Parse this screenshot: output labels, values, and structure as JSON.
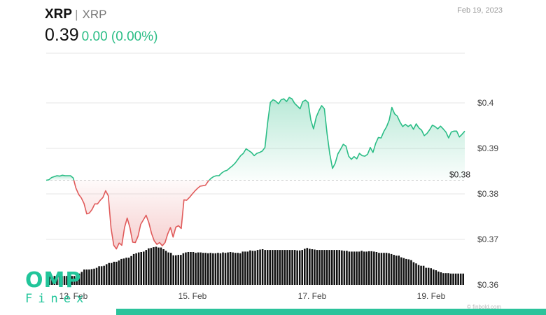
{
  "header": {
    "symbol": "XRP",
    "separator": "|",
    "name": "XRP",
    "price": "0.39",
    "change": "0.00 (0.00%)",
    "date": "Feb 19, 2023"
  },
  "logo": {
    "line1": "OMP",
    "line2": "Finex"
  },
  "credit": "© finbold.com",
  "colors": {
    "up": "#2bbd86",
    "down": "#e05a5a",
    "volume": "#111111",
    "brand": "#21c59a"
  },
  "chart_data": {
    "type": "line",
    "x_ticks": [
      "13. Feb",
      "15. Feb",
      "17. Feb",
      "19. Feb"
    ],
    "y_ticks": [
      "$0.4",
      "$0.39",
      "$0.38",
      "$0.37",
      "$0.36"
    ],
    "ylim": [
      0.36,
      0.4
    ],
    "baseline": {
      "value": 0.383,
      "label": "$0.38"
    },
    "price": [
      0.383,
      0.3831,
      0.3836,
      0.3838,
      0.384,
      0.3839,
      0.3841,
      0.384,
      0.384,
      0.384,
      0.3835,
      0.3813,
      0.3799,
      0.3791,
      0.3779,
      0.3756,
      0.3758,
      0.3766,
      0.3778,
      0.3778,
      0.3786,
      0.3792,
      0.3807,
      0.3796,
      0.3725,
      0.3687,
      0.3679,
      0.3692,
      0.3687,
      0.3726,
      0.3747,
      0.3726,
      0.3694,
      0.3693,
      0.3707,
      0.3733,
      0.3743,
      0.3753,
      0.3737,
      0.3713,
      0.3697,
      0.3689,
      0.3693,
      0.3686,
      0.3693,
      0.3712,
      0.3726,
      0.3705,
      0.3727,
      0.373,
      0.3724,
      0.3787,
      0.3786,
      0.3792,
      0.3799,
      0.3806,
      0.3812,
      0.3817,
      0.3818,
      0.3819,
      0.3828,
      0.3834,
      0.3838,
      0.384,
      0.384,
      0.3846,
      0.385,
      0.3852,
      0.3857,
      0.3862,
      0.3868,
      0.3876,
      0.3884,
      0.3889,
      0.3899,
      0.3895,
      0.3891,
      0.3884,
      0.3889,
      0.3891,
      0.3894,
      0.3902,
      0.3957,
      0.4001,
      0.4007,
      0.4004,
      0.3998,
      0.4007,
      0.4009,
      0.4003,
      0.4012,
      0.4009,
      0.3999,
      0.3993,
      0.3987,
      0.4003,
      0.4006,
      0.4001,
      0.3962,
      0.3943,
      0.3969,
      0.3983,
      0.3994,
      0.3987,
      0.3933,
      0.3888,
      0.3856,
      0.3867,
      0.3888,
      0.3898,
      0.3909,
      0.3905,
      0.3883,
      0.3876,
      0.3882,
      0.3877,
      0.3889,
      0.3884,
      0.3883,
      0.3887,
      0.3902,
      0.3891,
      0.3911,
      0.3924,
      0.3923,
      0.3937,
      0.3947,
      0.3962,
      0.399,
      0.3976,
      0.3971,
      0.3958,
      0.3948,
      0.3953,
      0.3948,
      0.3952,
      0.3942,
      0.3954,
      0.3945,
      0.394,
      0.3928,
      0.3933,
      0.3941,
      0.3951,
      0.3948,
      0.3943,
      0.3949,
      0.3943,
      0.3936,
      0.3923,
      0.3936,
      0.3938,
      0.3938,
      0.3925,
      0.3931,
      0.3938
    ],
    "volume": [
      0.22,
      0.21,
      0.21,
      0.22,
      0.22,
      0.22,
      0.22,
      0.22,
      0.22,
      0.22,
      0.22,
      0.22,
      0.25,
      0.28,
      0.32,
      0.38,
      0.38,
      0.38,
      0.39,
      0.4,
      0.42,
      0.46,
      0.46,
      0.47,
      0.51,
      0.54,
      0.54,
      0.57,
      0.57,
      0.6,
      0.64,
      0.65,
      0.67,
      0.67,
      0.71,
      0.76,
      0.78,
      0.8,
      0.81,
      0.82,
      0.86,
      0.9,
      0.91,
      0.93,
      0.94,
      0.92,
      0.92,
      0.88,
      0.84,
      0.8,
      0.79,
      0.73,
      0.73,
      0.74,
      0.74,
      0.78,
      0.8,
      0.81,
      0.81,
      0.81,
      0.79,
      0.8,
      0.8,
      0.79,
      0.79,
      0.78,
      0.79,
      0.78,
      0.78,
      0.79,
      0.78,
      0.8,
      0.79,
      0.8,
      0.81,
      0.8,
      0.79,
      0.79,
      0.78,
      0.82,
      0.82,
      0.82,
      0.85,
      0.84,
      0.84,
      0.86,
      0.87,
      0.88,
      0.86,
      0.86,
      0.86,
      0.86,
      0.86,
      0.86,
      0.86,
      0.86,
      0.86,
      0.86,
      0.86,
      0.86,
      0.86,
      0.85,
      0.85,
      0.86,
      0.89,
      0.91,
      0.89,
      0.88,
      0.87,
      0.86,
      0.86,
      0.86,
      0.86,
      0.86,
      0.86,
      0.86,
      0.86,
      0.86,
      0.86,
      0.85,
      0.84,
      0.84,
      0.82,
      0.82,
      0.82,
      0.82,
      0.82,
      0.84,
      0.82,
      0.82,
      0.83,
      0.83,
      0.82,
      0.81,
      0.79,
      0.79,
      0.79,
      0.79,
      0.78,
      0.76,
      0.74,
      0.72,
      0.72,
      0.68,
      0.66,
      0.64,
      0.63,
      0.61,
      0.56,
      0.53,
      0.49,
      0.47,
      0.47,
      0.42,
      0.42,
      0.41,
      0.38,
      0.36,
      0.33,
      0.31,
      0.29,
      0.29,
      0.29,
      0.28,
      0.28,
      0.28,
      0.28,
      0.28,
      0.28
    ]
  }
}
